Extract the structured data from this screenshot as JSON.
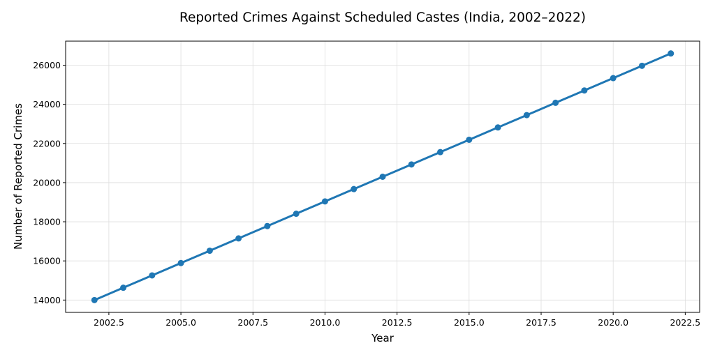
{
  "chart_data": {
    "type": "line",
    "title": "Reported Crimes Against Scheduled Castes (India, 2002–2022)",
    "xlabel": "Year",
    "ylabel": "Number of Reported Crimes",
    "xlim": [
      2001.0,
      2023.0
    ],
    "ylim": [
      13370,
      27230
    ],
    "xticks": [
      2002.5,
      2005.0,
      2007.5,
      2010.0,
      2012.5,
      2015.0,
      2017.5,
      2020.0,
      2022.5
    ],
    "xtick_labels": [
      "2002.5",
      "2005.0",
      "2007.5",
      "2010.0",
      "2012.5",
      "2015.0",
      "2017.5",
      "2020.0",
      "2022.5"
    ],
    "yticks": [
      14000,
      16000,
      18000,
      20000,
      22000,
      24000,
      26000
    ],
    "ytick_labels": [
      "14000",
      "16000",
      "18000",
      "20000",
      "22000",
      "24000",
      "26000"
    ],
    "grid": true,
    "color": "#1f77b4",
    "marker": "circle",
    "x": [
      2002,
      2003,
      2004,
      2005,
      2006,
      2007,
      2008,
      2009,
      2010,
      2011,
      2012,
      2013,
      2014,
      2015,
      2016,
      2017,
      2018,
      2019,
      2020,
      2021,
      2022
    ],
    "y": [
      14000,
      14630,
      15260,
      15890,
      16520,
      17150,
      17780,
      18410,
      19040,
      19670,
      20300,
      20930,
      21560,
      22190,
      22820,
      23450,
      24080,
      24710,
      25340,
      25970,
      26600
    ]
  }
}
